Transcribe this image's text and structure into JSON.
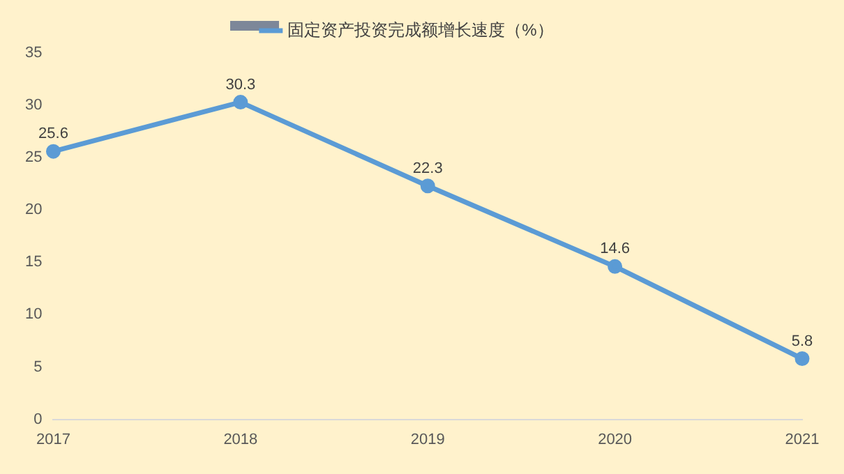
{
  "chart_data": {
    "type": "line",
    "categories": [
      "2017",
      "2018",
      "2019",
      "2020",
      "2021"
    ],
    "series": [
      {
        "name": "固定资产投资完成额增长速度（%）",
        "color": "#5b9bd5",
        "values": [
          25.6,
          30.3,
          22.3,
          14.6,
          5.8
        ]
      }
    ],
    "ylim": [
      0,
      35
    ],
    "yticks": [
      0,
      5,
      10,
      15,
      20,
      25,
      30,
      35
    ],
    "grid": false,
    "legend": "top",
    "marker": "circle",
    "line_style": "solid",
    "data_labels": true
  }
}
